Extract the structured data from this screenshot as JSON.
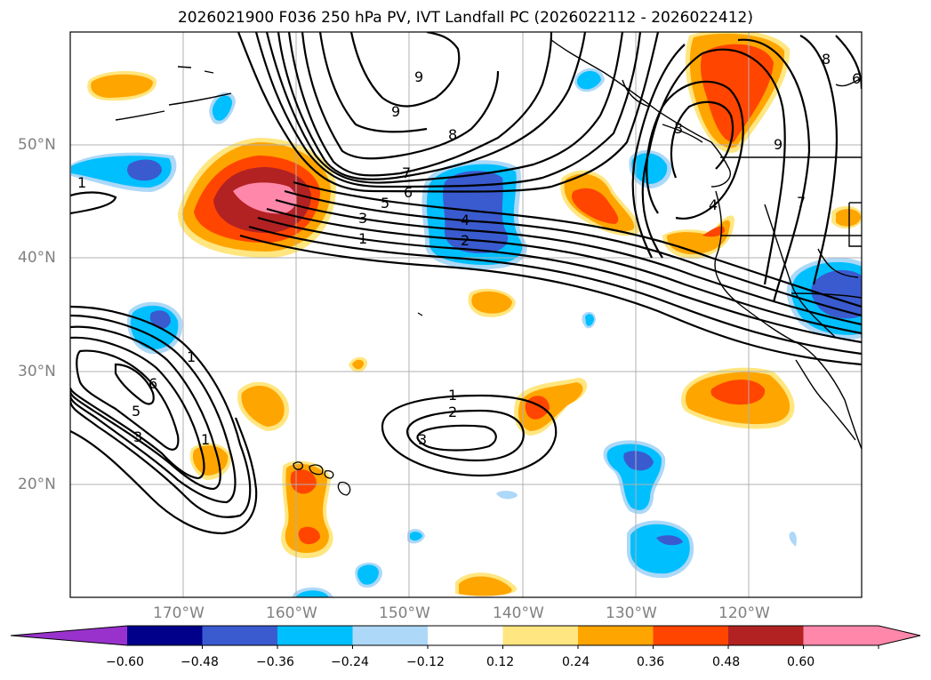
{
  "title": "2026021900 F036 250 hPa PV, IVT Landfall PC (2026022112 - 2026022412)",
  "map": {
    "lon_range": [
      -180,
      -110
    ],
    "lat_range": [
      10,
      60
    ],
    "lat_labels": [
      "50°N",
      "40°N",
      "30°N",
      "20°N"
    ],
    "lat_values": [
      50,
      40,
      30,
      20
    ],
    "lon_labels": [
      "170°W",
      "160°W",
      "150°W",
      "140°W",
      "130°W",
      "120°W"
    ],
    "lon_values": [
      -170,
      -160,
      -150,
      -140,
      -130,
      -120
    ],
    "contour_labels": [
      "9",
      "9",
      "8",
      "7",
      "6",
      "5",
      "3",
      "1",
      "4",
      "2",
      "1",
      "1",
      "6",
      "5",
      "3",
      "1",
      "2",
      "3",
      "1",
      "4",
      "7",
      "9",
      "8",
      "6",
      "3"
    ]
  },
  "colorbar": {
    "ticks": [
      "−0.60",
      "−0.48",
      "−0.36",
      "−0.24",
      "−0.12",
      "0.12",
      "0.24",
      "0.36",
      "0.48",
      "0.60"
    ],
    "colors": [
      "#9932cc",
      "#00008b",
      "#3a5bcf",
      "#00bfff",
      "#add8f7",
      "#ffffff",
      "#ffe680",
      "#ffa500",
      "#ff4500",
      "#b22222",
      "#ff88aa",
      "#ff88aa"
    ]
  }
}
